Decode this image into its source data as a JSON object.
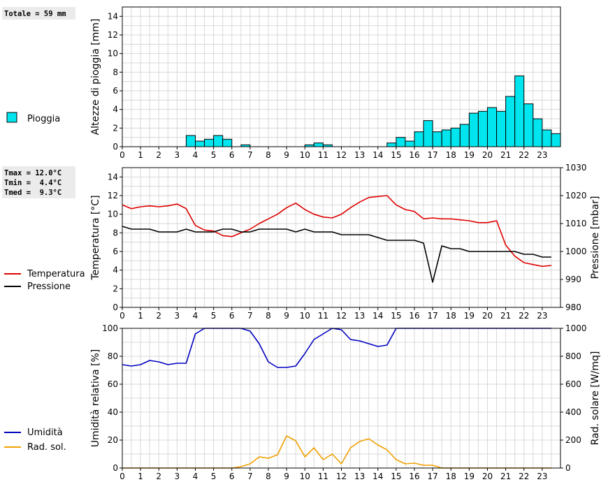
{
  "chart_data": [
    {
      "type": "bar",
      "title": "",
      "ylabel": "Altezze di pioggia [mm]",
      "ylim": [
        0,
        15
      ],
      "yticks": [
        0,
        2,
        4,
        6,
        8,
        10,
        12,
        14
      ],
      "xlim": [
        0,
        24
      ],
      "xticks": [
        "0",
        "1",
        "2",
        "3",
        "4",
        "5",
        "6",
        "7",
        "8",
        "9",
        "10",
        "11",
        "12",
        "13",
        "14",
        "15",
        "16",
        "17",
        "18",
        "19",
        "20",
        "21",
        "22",
        "23"
      ],
      "info_box": [
        "Totale = 59 mm"
      ],
      "legend": [
        {
          "label": "Pioggia",
          "color": "#00e5ee"
        }
      ],
      "bar_width_hours": 0.5,
      "bar_starts": [
        3.5,
        4.0,
        4.5,
        5.0,
        5.5,
        6.5,
        10.0,
        10.5,
        11.0,
        14.5,
        15.0,
        15.5,
        16.0,
        16.5,
        17.0,
        17.5,
        18.0,
        18.5,
        19.0,
        19.5,
        20.0,
        20.5,
        21.0,
        21.5,
        22.0,
        22.5,
        23.0,
        23.5
      ],
      "values": [
        1.2,
        0.6,
        0.8,
        1.2,
        0.8,
        0.2,
        0.2,
        0.4,
        0.2,
        0.4,
        1.0,
        0.6,
        1.6,
        2.8,
        1.6,
        1.8,
        2.0,
        2.4,
        3.6,
        3.8,
        4.2,
        3.8,
        5.4,
        7.6,
        4.6,
        3.0,
        1.8,
        1.4
      ]
    },
    {
      "type": "line",
      "ylabel": "Temperatura [°C]",
      "ylabel_right": "Pressione [mbar]",
      "ylim": [
        0,
        15
      ],
      "yticks": [
        0,
        2,
        4,
        6,
        8,
        10,
        12,
        14
      ],
      "ylim_right": [
        980,
        1030
      ],
      "yticks_right": [
        980,
        990,
        1000,
        1010,
        1020,
        1030
      ],
      "xlim": [
        0,
        24
      ],
      "xticks": [
        "0",
        "1",
        "2",
        "3",
        "4",
        "5",
        "6",
        "7",
        "8",
        "9",
        "10",
        "11",
        "12",
        "13",
        "14",
        "15",
        "16",
        "17",
        "18",
        "19",
        "20",
        "21",
        "22",
        "23"
      ],
      "info_box": [
        "Tmax = 12.0°C",
        "Tmin =  4.4°C",
        "Tmed =  9.3°C"
      ],
      "legend": [
        {
          "label": "Temperatura",
          "color": "#e00000"
        },
        {
          "label": "Pressione",
          "color": "#000000"
        }
      ],
      "series": [
        {
          "name": "Temperatura",
          "axis": "left",
          "color": "#e00000",
          "x": [
            0,
            0.5,
            1,
            1.5,
            2,
            2.5,
            3,
            3.5,
            4,
            4.5,
            5,
            5.5,
            6,
            6.5,
            7,
            7.5,
            8,
            8.5,
            9,
            9.5,
            10,
            10.5,
            11,
            11.5,
            12,
            12.5,
            13,
            13.5,
            14,
            14.5,
            15,
            15.5,
            16,
            16.5,
            17,
            17.5,
            18,
            18.5,
            19,
            19.5,
            20,
            20.5,
            21,
            21.5,
            22,
            22.5,
            23,
            23.5
          ],
          "y": [
            11.0,
            10.6,
            10.8,
            10.9,
            10.8,
            10.9,
            11.1,
            10.6,
            8.8,
            8.3,
            8.2,
            7.7,
            7.6,
            8.0,
            8.4,
            9.0,
            9.5,
            10.0,
            10.7,
            11.2,
            10.5,
            10.0,
            9.7,
            9.6,
            10.0,
            10.7,
            11.3,
            11.8,
            11.9,
            12.0,
            11.0,
            10.5,
            10.3,
            9.5,
            9.6,
            9.5,
            9.5,
            9.4,
            9.3,
            9.1,
            9.1,
            9.3,
            6.7,
            5.5,
            4.8,
            4.6,
            4.4,
            4.5
          ]
        },
        {
          "name": "Pressione",
          "axis": "right",
          "color": "#000000",
          "x": [
            0,
            0.5,
            1,
            1.5,
            2,
            2.5,
            3,
            3.5,
            4,
            4.5,
            5,
            5.5,
            6,
            6.5,
            7,
            7.5,
            8,
            8.5,
            9,
            9.5,
            10,
            10.5,
            11,
            11.5,
            12,
            12.5,
            13,
            13.5,
            14,
            14.5,
            15,
            15.5,
            16,
            16.5,
            17,
            17.5,
            18,
            18.5,
            19,
            19.5,
            20,
            20.5,
            21,
            21.5,
            22,
            22.5,
            23,
            23.5
          ],
          "y": [
            1009,
            1008,
            1008,
            1008,
            1007,
            1007,
            1007,
            1008,
            1007,
            1007,
            1007,
            1008,
            1008,
            1007,
            1007,
            1008,
            1008,
            1008,
            1008,
            1007,
            1008,
            1007,
            1007,
            1007,
            1006,
            1006,
            1006,
            1006,
            1005,
            1004,
            1004,
            1004,
            1004,
            1003,
            989,
            1002,
            1001,
            1001,
            1000,
            1000,
            1000,
            1000,
            1000,
            1000,
            999,
            999,
            998,
            998
          ]
        }
      ]
    },
    {
      "type": "line",
      "ylabel": "Umidità relativa [%]",
      "ylabel_right": "Rad. solare [W/mq]",
      "ylim": [
        0,
        100
      ],
      "yticks": [
        0,
        20,
        40,
        60,
        80,
        100
      ],
      "ylim_right": [
        0,
        1000
      ],
      "yticks_right": [
        0,
        200,
        400,
        600,
        800,
        1000
      ],
      "xlim": [
        0,
        24
      ],
      "xticks": [
        "0",
        "1",
        "2",
        "3",
        "4",
        "5",
        "6",
        "7",
        "8",
        "9",
        "10",
        "11",
        "12",
        "13",
        "14",
        "15",
        "16",
        "17",
        "18",
        "19",
        "20",
        "21",
        "22",
        "23"
      ],
      "legend": [
        {
          "label": "Umidità",
          "color": "#0000c0"
        },
        {
          "label": "Rad. sol.",
          "color": "#f0a000"
        }
      ],
      "series": [
        {
          "name": "Umidità",
          "axis": "left",
          "color": "#0000c0",
          "x": [
            0,
            0.5,
            1,
            1.5,
            2,
            2.5,
            3,
            3.5,
            4,
            4.5,
            5,
            5.5,
            6,
            6.5,
            7,
            7.5,
            8,
            8.5,
            9,
            9.5,
            10,
            10.5,
            11,
            11.5,
            12,
            12.5,
            13,
            13.5,
            14,
            14.5,
            15,
            15.5,
            16,
            16.5,
            17,
            17.5,
            18,
            18.5,
            19,
            19.5,
            20,
            20.5,
            21,
            21.5,
            22,
            22.5,
            23,
            23.5
          ],
          "y": [
            74,
            73,
            74,
            77,
            76,
            74,
            75,
            75,
            96,
            100,
            100,
            100,
            100,
            100,
            98,
            89,
            76,
            72,
            72,
            73,
            82,
            92,
            96,
            100,
            99,
            92,
            91,
            89,
            87,
            88,
            100,
            100,
            100,
            100,
            100,
            100,
            100,
            100,
            100,
            100,
            100,
            100,
            100,
            100,
            100,
            100,
            100,
            100
          ]
        },
        {
          "name": "Rad. sol.",
          "axis": "right",
          "color": "#f0a000",
          "x": [
            0,
            0.5,
            1,
            1.5,
            2,
            2.5,
            3,
            3.5,
            4,
            4.5,
            5,
            5.5,
            6,
            6.5,
            7,
            7.5,
            8,
            8.5,
            9,
            9.5,
            10,
            10.5,
            11,
            11.5,
            12,
            12.5,
            13,
            13.5,
            14,
            14.5,
            15,
            15.5,
            16,
            16.5,
            17,
            17.5,
            18,
            18.5,
            19,
            19.5,
            20,
            20.5,
            21,
            21.5,
            22,
            22.5,
            23,
            23.5
          ],
          "y": [
            0,
            0,
            0,
            0,
            0,
            0,
            0,
            0,
            0,
            0,
            0,
            0,
            0,
            10,
            30,
            80,
            70,
            95,
            230,
            195,
            80,
            145,
            60,
            100,
            30,
            145,
            190,
            210,
            165,
            130,
            60,
            30,
            35,
            20,
            20,
            0,
            0,
            0,
            0,
            0,
            0,
            0,
            0,
            0,
            0,
            0,
            0,
            0
          ]
        }
      ]
    }
  ]
}
